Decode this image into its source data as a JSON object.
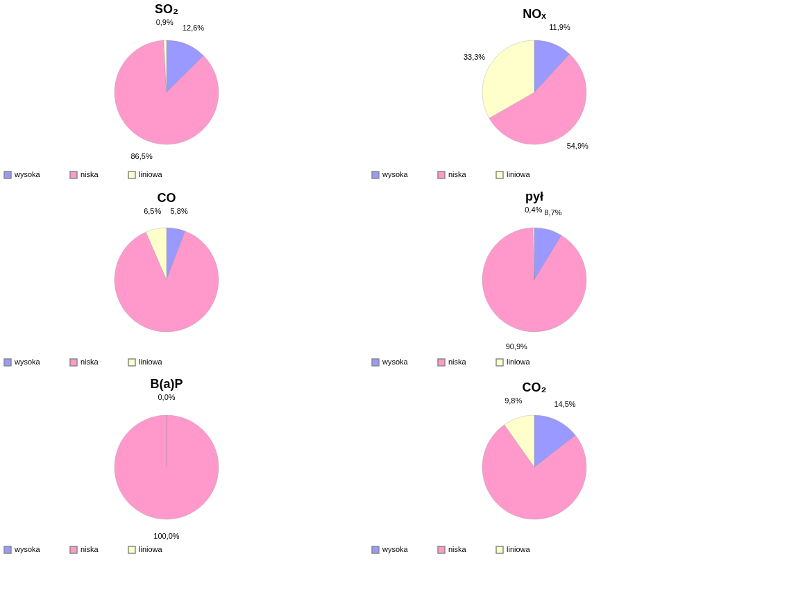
{
  "chart_data": [
    {
      "type": "pie",
      "title": "SO₂",
      "categories": [
        "wysoka",
        "niska",
        "liniowa"
      ],
      "values": [
        12.6,
        86.5,
        0.9
      ],
      "colors": [
        "#9999ff",
        "#ff99cc",
        "#ffffcc"
      ],
      "value_labels": [
        "12,6%",
        "86,5%",
        "0,9%"
      ],
      "legend": "bottom"
    },
    {
      "type": "pie",
      "title": "NOₓ",
      "categories": [
        "wysoka",
        "niska",
        "liniowa"
      ],
      "values": [
        11.9,
        54.9,
        33.3
      ],
      "colors": [
        "#9999ff",
        "#ff99cc",
        "#ffffcc"
      ],
      "value_labels": [
        "11,9%",
        "54,9%",
        "33,3%"
      ],
      "legend": "bottom"
    },
    {
      "type": "pie",
      "title": "CO",
      "categories": [
        "wysoka",
        "niska",
        "liniowa"
      ],
      "values": [
        5.8,
        87.7,
        6.5
      ],
      "colors": [
        "#9999ff",
        "#ff99cc",
        "#ffffcc"
      ],
      "value_labels": [
        "5,8%",
        null,
        "6,5%"
      ],
      "legend": "bottom"
    },
    {
      "type": "pie",
      "title": "pył",
      "categories": [
        "wysoka",
        "niska",
        "liniowa"
      ],
      "values": [
        8.7,
        90.9,
        0.4
      ],
      "colors": [
        "#9999ff",
        "#ff99cc",
        "#ffffcc"
      ],
      "value_labels": [
        "8,7%",
        "90,9%",
        "0,4%"
      ],
      "legend": "bottom"
    },
    {
      "type": "pie",
      "title": "B(a)P",
      "categories": [
        "wysoka",
        "niska",
        "liniowa"
      ],
      "values": [
        0.0,
        100.0,
        0.0
      ],
      "colors": [
        "#9999ff",
        "#ff99cc",
        "#ffffcc"
      ],
      "value_labels": [
        "0,0%",
        "100,0%",
        null
      ],
      "legend": "bottom"
    },
    {
      "type": "pie",
      "title": "CO₂",
      "categories": [
        "wysoka",
        "niska",
        "liniowa"
      ],
      "values": [
        14.5,
        75.7,
        9.8
      ],
      "colors": [
        "#9999ff",
        "#ff99cc",
        "#ffffcc"
      ],
      "value_labels": [
        "14,5%",
        null,
        "9,8%"
      ],
      "legend": "bottom"
    }
  ]
}
